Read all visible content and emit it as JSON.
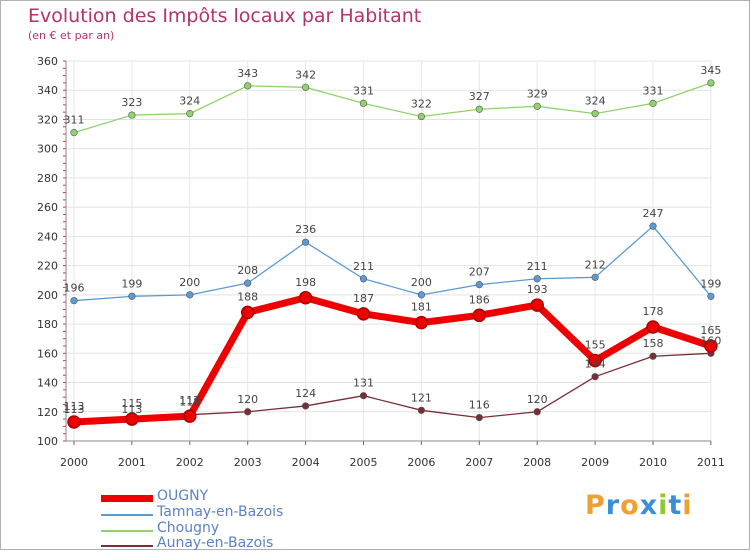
{
  "header": {
    "title": "Evolution des Impôts locaux par Habitant",
    "subtitle": "(en € et par an)"
  },
  "chart_data": {
    "type": "line",
    "title": "Evolution des Impôts locaux par Habitant",
    "subtitle": "(en € et par an)",
    "xlabel": "",
    "ylabel": "",
    "categories": [
      "2000",
      "2001",
      "2002",
      "2003",
      "2004",
      "2005",
      "2006",
      "2007",
      "2008",
      "2009",
      "2010",
      "2011"
    ],
    "ylim": [
      100,
      360
    ],
    "yticks": [
      100,
      120,
      140,
      160,
      180,
      200,
      220,
      240,
      260,
      280,
      300,
      320,
      340,
      360
    ],
    "grid": true,
    "legend_position": "bottom-left",
    "series": [
      {
        "name": "Chougny",
        "color": "#8fd36b",
        "values": [
          311,
          323,
          324,
          343,
          342,
          331,
          322,
          327,
          329,
          324,
          331,
          345
        ]
      },
      {
        "name": "Tamnay-en-Bazois",
        "color": "#5b9bd5",
        "values": [
          196,
          199,
          200,
          208,
          236,
          211,
          200,
          207,
          211,
          212,
          247,
          199
        ]
      },
      {
        "name": "Aunay-en-Bazois",
        "color": "#7b2c36",
        "values": [
          113,
          113,
          118,
          120,
          124,
          131,
          121,
          116,
          120,
          144,
          158,
          160
        ]
      },
      {
        "name": "OUGNY",
        "color": "#ee0000",
        "values": [
          113,
          115,
          117,
          188,
          198,
          187,
          181,
          186,
          193,
          155,
          178,
          165
        ]
      }
    ]
  },
  "legend": [
    {
      "label": "OUGNY",
      "color": "#ee0000"
    },
    {
      "label": "Tamnay-en-Bazois",
      "color": "#5b9bd5"
    },
    {
      "label": "Chougny",
      "color": "#8fd36b"
    },
    {
      "label": "Aunay-en-Bazois",
      "color": "#7b2c36"
    }
  ],
  "logo": {
    "letters": [
      "P",
      "r",
      "o",
      "x",
      "i",
      "t",
      "i"
    ],
    "colors": [
      "#f0a030",
      "#3a8fd8",
      "#f0a030",
      "#3a8fd8",
      "#8fc830",
      "#3a8fd8",
      "#f0a030"
    ]
  }
}
